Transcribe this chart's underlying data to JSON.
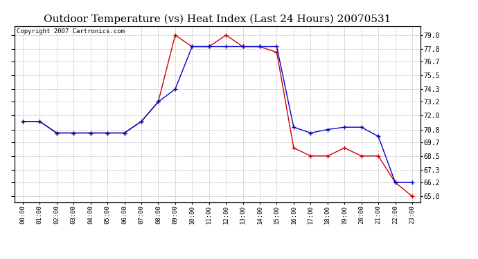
{
  "title": "Outdoor Temperature (vs) Heat Index (Last 24 Hours) 20070531",
  "copyright": "Copyright 2007 Cartronics.com",
  "hours": [
    "00:00",
    "01:00",
    "02:00",
    "03:00",
    "04:00",
    "05:00",
    "06:00",
    "07:00",
    "08:00",
    "09:00",
    "10:00",
    "11:00",
    "12:00",
    "13:00",
    "14:00",
    "15:00",
    "16:00",
    "17:00",
    "18:00",
    "19:00",
    "20:00",
    "21:00",
    "22:00",
    "23:00"
  ],
  "temp": [
    71.5,
    71.5,
    70.5,
    70.5,
    70.5,
    70.5,
    70.5,
    71.5,
    73.2,
    79.0,
    78.0,
    78.0,
    79.0,
    78.0,
    78.0,
    77.5,
    69.2,
    68.5,
    68.5,
    69.2,
    68.5,
    68.5,
    66.2,
    65.0
  ],
  "heat_index": [
    71.5,
    71.5,
    70.5,
    70.5,
    70.5,
    70.5,
    70.5,
    71.5,
    73.2,
    74.3,
    78.0,
    78.0,
    78.0,
    78.0,
    78.0,
    78.0,
    71.0,
    70.5,
    70.8,
    71.0,
    71.0,
    70.2,
    66.2,
    66.2
  ],
  "temp_color": "#cc0000",
  "heat_index_color": "#0000cc",
  "ylim_min": 64.5,
  "ylim_max": 79.8,
  "yticks": [
    65.0,
    66.2,
    67.3,
    68.5,
    69.7,
    70.8,
    72.0,
    73.2,
    74.3,
    75.5,
    76.7,
    77.8,
    79.0
  ],
  "bg_color": "#ffffff",
  "grid_color": "#bbbbbb",
  "title_fontsize": 11,
  "copyright_fontsize": 6.5
}
